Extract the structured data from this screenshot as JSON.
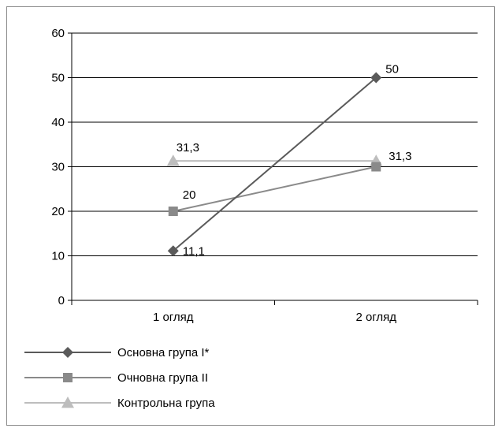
{
  "chart_data": {
    "type": "line",
    "categories": [
      "1 огляд",
      "2 огляд"
    ],
    "ylim": [
      0,
      60
    ],
    "y_ticks": [
      0,
      10,
      20,
      30,
      40,
      50,
      60
    ],
    "grid": true,
    "legend_position": "bottom-left",
    "series": [
      {
        "name": "Основна група І*",
        "values": [
          11.1,
          50
        ],
        "labels": [
          "11,1",
          "50"
        ],
        "color": "#5a5a5a",
        "marker": "diamond"
      },
      {
        "name": "Очновна група ІІ",
        "values": [
          20,
          30
        ],
        "labels": [
          "20",
          ""
        ],
        "color": "#8a8a8a",
        "marker": "square"
      },
      {
        "name": "Контрольна група",
        "values": [
          31.3,
          31.3
        ],
        "labels": [
          "31,3",
          "31,3"
        ],
        "color": "#bdbdbd",
        "marker": "triangle"
      }
    ]
  }
}
